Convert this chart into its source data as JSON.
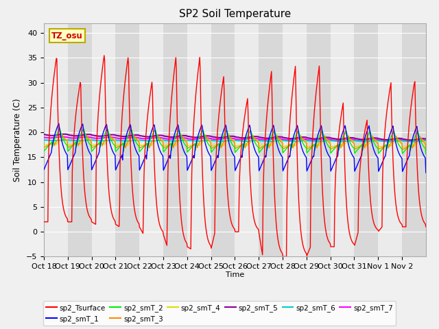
{
  "title": "SP2 Soil Temperature",
  "ylabel": "Soil Temperature (C)",
  "xlabel": "Time",
  "tz_label": "TZ_osu",
  "ylim": [
    -5,
    42
  ],
  "yticks": [
    -5,
    0,
    5,
    10,
    15,
    20,
    25,
    30,
    35,
    40
  ],
  "xtick_labels": [
    "Oct 18",
    "Oct 19",
    "Oct 20",
    "Oct 21",
    "Oct 22",
    "Oct 23",
    "Oct 24",
    "Oct 25",
    "Oct 26",
    "Oct 27",
    "Oct 28",
    "Oct 29",
    "Oct 30",
    "Oct 31",
    "Nov 1",
    "Nov 2"
  ],
  "n_days": 16,
  "series_colors": {
    "sp2_Tsurface": "#ff0000",
    "sp2_smT_1": "#0000ff",
    "sp2_smT_2": "#00ee00",
    "sp2_smT_3": "#ff8800",
    "sp2_smT_4": "#dddd00",
    "sp2_smT_5": "#880099",
    "sp2_smT_6": "#00cccc",
    "sp2_smT_7": "#ff00ff"
  },
  "fig_bg_color": "#f0f0f0",
  "plot_bg_color": "#e8e8e8",
  "stripe_light": "#ebebeb",
  "stripe_dark": "#d8d8d8",
  "grid_color": "#ffffff",
  "peak_heights": [
    35.5,
    30.5,
    36,
    35.5,
    30.5,
    35.5,
    35.5,
    31.5,
    27,
    32.5,
    33.5,
    33.5,
    26,
    22.5,
    30,
    30.5
  ],
  "trough_vals": [
    2,
    2,
    1.5,
    1,
    -0.5,
    -3,
    -3.5,
    0,
    0,
    -5,
    -5,
    -3,
    -3,
    0,
    1,
    1
  ]
}
